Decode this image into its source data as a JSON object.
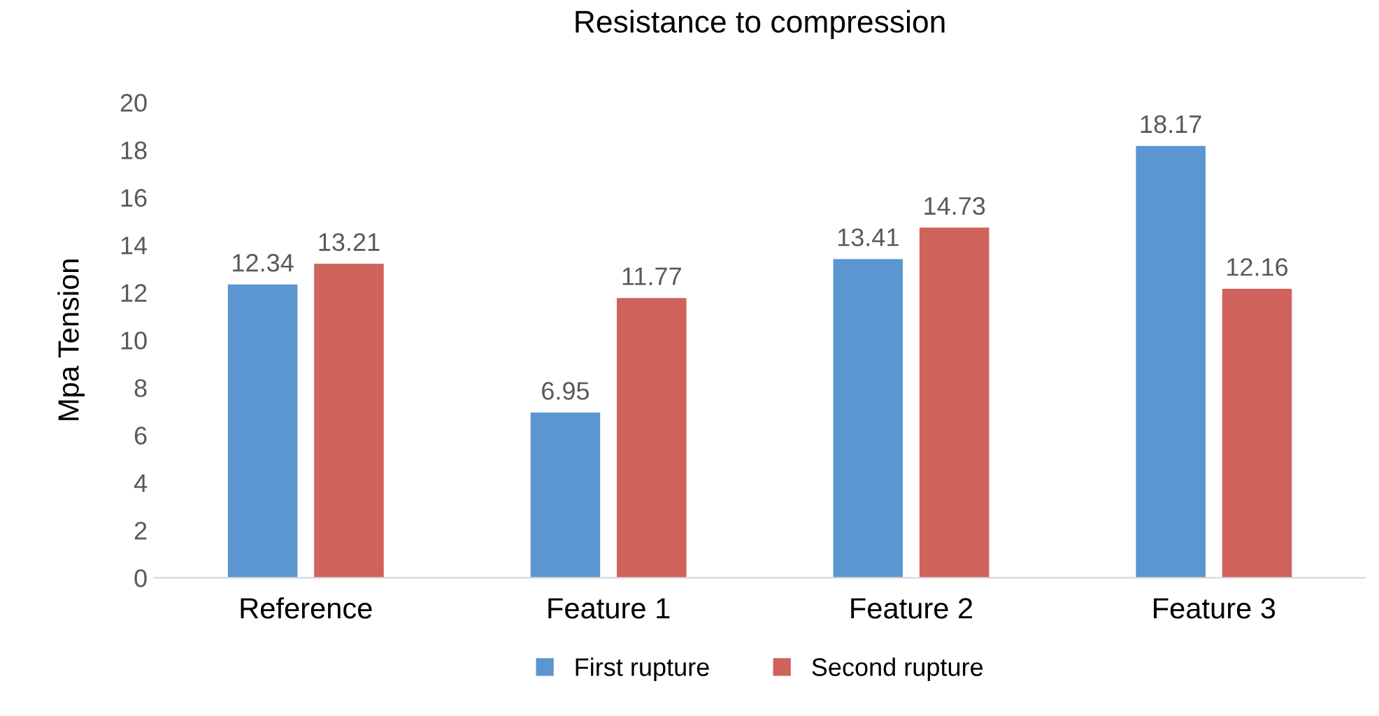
{
  "chart_data": {
    "type": "bar",
    "title": "Resistance to compression",
    "ylabel": "Mpa Tension",
    "categories": [
      "Reference",
      "Feature 1",
      "Feature 2",
      "Feature 3"
    ],
    "series": [
      {
        "name": "First rupture",
        "color": "#5b96d0",
        "values": [
          12.34,
          6.95,
          13.41,
          18.17
        ]
      },
      {
        "name": "Second rupture",
        "color": "#d0625c",
        "values": [
          13.21,
          11.77,
          14.73,
          12.16
        ]
      }
    ],
    "ylim": [
      0,
      20
    ],
    "yticks": [
      0,
      2,
      4,
      6,
      8,
      10,
      12,
      14,
      16,
      18,
      20
    ],
    "grid": false,
    "legend": "bottom",
    "data_labels": true
  }
}
